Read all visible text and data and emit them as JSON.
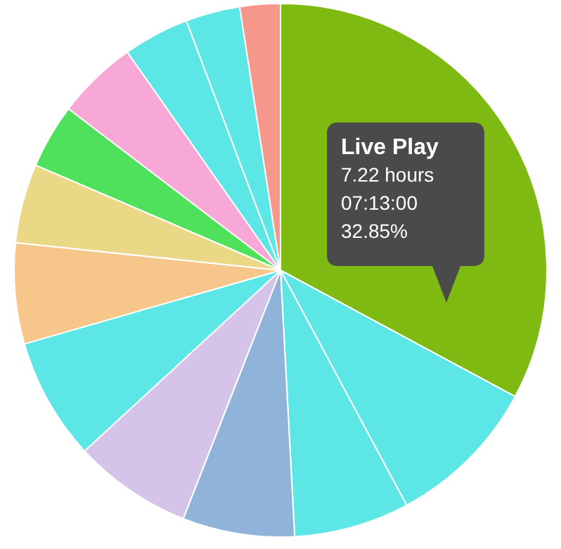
{
  "chart_data": {
    "type": "pie",
    "categories": [
      "Live Play",
      null,
      null,
      null,
      null,
      null,
      null,
      null,
      null,
      null,
      null,
      null,
      null
    ],
    "values": [
      32.85,
      9.3,
      7.0,
      6.8,
      7.2,
      7.4,
      6.1,
      4.8,
      3.9,
      4.9,
      4.0,
      3.3,
      2.45
    ],
    "colors": [
      "#7fba12",
      "#5ce6e6",
      "#5ce6e6",
      "#8fb3d9",
      "#d5c3ea",
      "#5ce6e6",
      "#f7c68b",
      "#ebd887",
      "#4fe05c",
      "#f7a8d6",
      "#5ce6e6",
      "#5ce6e6",
      "#f6978c"
    ],
    "value_labels": [
      "32.85%",
      null,
      null,
      null,
      null,
      null,
      null,
      null,
      null,
      null,
      null,
      null,
      null
    ],
    "annotations": [
      "7.22 hours",
      "07:13:00"
    ],
    "legend": false
  }
}
